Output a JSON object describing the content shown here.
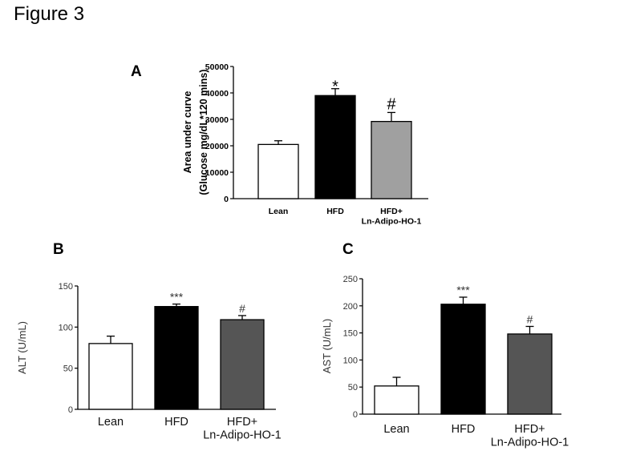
{
  "figure_title": "Figure 3",
  "chart_data": [
    {
      "type": "bar",
      "panel_label": "A",
      "categories": [
        "Lean",
        "HFD",
        "HFD+\nLn-Adipo-HO-1"
      ],
      "values": [
        20500,
        39000,
        29200
      ],
      "errors": [
        1400,
        2600,
        3400
      ],
      "annotations": [
        "",
        "*",
        "#"
      ],
      "colors": [
        "#ffffff",
        "#000000",
        "#a0a0a0"
      ],
      "ylabel": "Area under curve\n(Glucose mg/dL*120 mins)",
      "ylim": [
        0,
        50000
      ],
      "yticks": [
        0,
        10000,
        20000,
        30000,
        40000,
        50000
      ]
    },
    {
      "type": "bar",
      "panel_label": "B",
      "categories": [
        "Lean",
        "HFD",
        "HFD+\nLn-Adipo-HO-1"
      ],
      "values": [
        80,
        125,
        109
      ],
      "errors": [
        9,
        3,
        5
      ],
      "annotations": [
        "",
        "***",
        "#"
      ],
      "colors": [
        "#ffffff",
        "#000000",
        "#555555"
      ],
      "ylabel": "ALT (U/mL)",
      "ylim": [
        0,
        150
      ],
      "yticks": [
        0,
        50,
        100,
        150
      ]
    },
    {
      "type": "bar",
      "panel_label": "C",
      "categories": [
        "Lean",
        "HFD",
        "HFD+\nLn-Adipo-HO-1"
      ],
      "values": [
        52,
        203,
        148
      ],
      "errors": [
        16,
        13,
        14
      ],
      "annotations": [
        "",
        "***",
        "#"
      ],
      "colors": [
        "#ffffff",
        "#000000",
        "#555555"
      ],
      "ylabel": "AST (U/mL)",
      "ylim": [
        0,
        250
      ],
      "yticks": [
        0,
        50,
        100,
        150,
        200,
        250
      ]
    }
  ]
}
